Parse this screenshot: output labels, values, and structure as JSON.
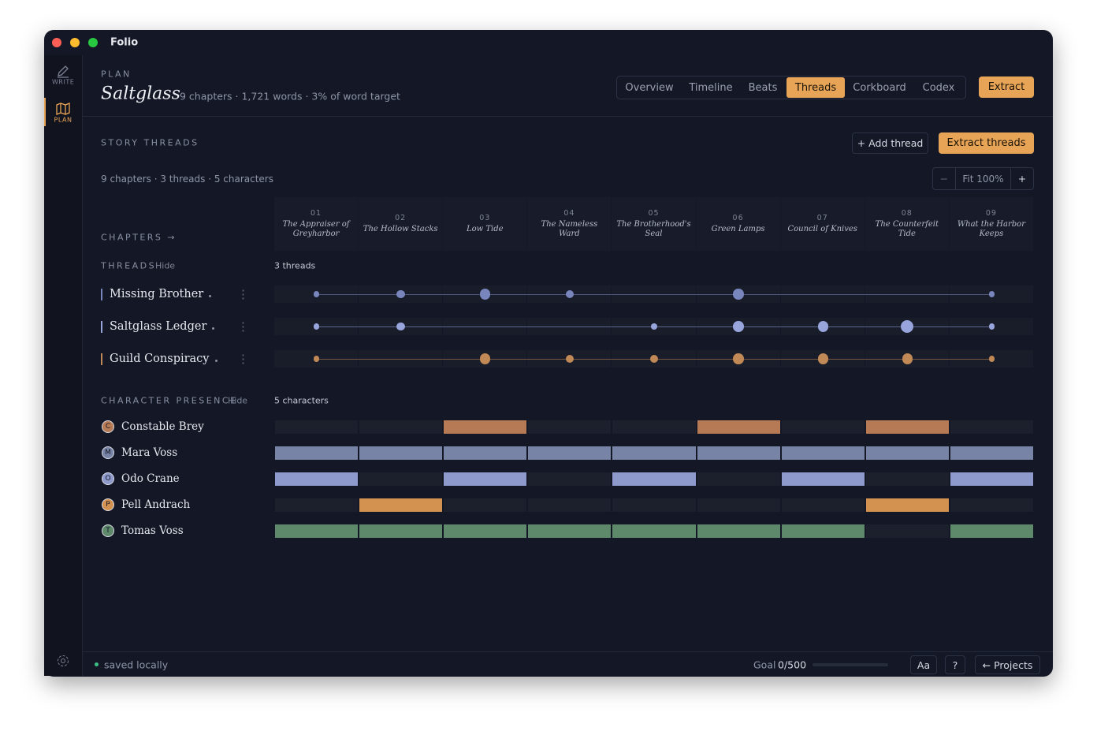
{
  "app": {
    "name": "Folio"
  },
  "sidebar": {
    "items": [
      {
        "label": "WRITE"
      },
      {
        "label": "PLAN"
      }
    ],
    "active": 1
  },
  "header": {
    "eyebrow": "PLAN",
    "title": "Saltglass",
    "meta": "9 chapters · 1,721 words · 3% of word target",
    "tabs": [
      "Overview",
      "Timeline",
      "Beats",
      "Threads",
      "Corkboard",
      "Codex"
    ],
    "active_tab": 3,
    "action": "Extract"
  },
  "section": {
    "title": "STORY THREADS",
    "add": "+ Add thread",
    "extract": "Extract threads",
    "summary": "9 chapters · 3 threads · 5 characters",
    "zoom": {
      "minus": "−",
      "fit": "Fit 100%",
      "plus": "+"
    }
  },
  "chapters_label": "CHAPTERS →",
  "chapters": [
    {
      "number": "01",
      "title": "The Appraiser of Greyharbor"
    },
    {
      "number": "02",
      "title": "The Hollow Stacks"
    },
    {
      "number": "03",
      "title": "Low Tide"
    },
    {
      "number": "04",
      "title": "The Nameless Ward"
    },
    {
      "number": "05",
      "title": "The Brotherhood's Seal"
    },
    {
      "number": "06",
      "title": "Green Lamps"
    },
    {
      "number": "07",
      "title": "Council of Knives"
    },
    {
      "number": "08",
      "title": "The Counterfeit Tide"
    },
    {
      "number": "09",
      "title": "What the Harbor Keeps"
    }
  ],
  "threads_section": {
    "label": "THREADS",
    "hide": "Hide",
    "count": "3 threads"
  },
  "threads": [
    {
      "name": "Missing Brother",
      "color": "#7886bd",
      "weights": [
        1,
        2,
        3,
        2,
        null,
        3,
        null,
        null,
        1
      ]
    },
    {
      "name": "Saltglass Ledger",
      "color": "#97a5dc",
      "weights": [
        1,
        2,
        null,
        null,
        1,
        3,
        3,
        4,
        1
      ]
    },
    {
      "name": "Guild Conspiracy",
      "color": "#c08955",
      "weights": [
        1,
        null,
        3,
        2,
        2,
        3,
        3,
        3,
        1
      ]
    }
  ],
  "characters_section": {
    "label": "CHARACTER PRESENCE",
    "hide": "Hide",
    "count": "5 characters"
  },
  "characters": [
    {
      "initial": "C",
      "name": "Constable Brey",
      "color": "#b67b55",
      "presence": [
        0,
        0,
        1,
        0,
        0,
        1,
        0,
        1,
        0
      ]
    },
    {
      "initial": "M",
      "name": "Mara Voss",
      "color": "#7884a6",
      "presence": [
        1,
        1,
        1,
        1,
        1,
        1,
        1,
        1,
        1
      ]
    },
    {
      "initial": "O",
      "name": "Odo Crane",
      "color": "#8e9acb",
      "presence": [
        1,
        0,
        1,
        0,
        1,
        0,
        1,
        0,
        1
      ]
    },
    {
      "initial": "P",
      "name": "Pell Andrach",
      "color": "#d49250",
      "presence": [
        0,
        1,
        0,
        0,
        0,
        0,
        0,
        1,
        0
      ]
    },
    {
      "initial": "T",
      "name": "Tomas Voss",
      "color": "#5e8a6b",
      "presence": [
        1,
        1,
        1,
        1,
        1,
        1,
        1,
        0,
        1
      ]
    }
  ],
  "footer": {
    "status": "saved locally",
    "goal_label": "Goal",
    "goal": "0/500",
    "font": "Aa",
    "help": "?",
    "projects": "← Projects"
  }
}
